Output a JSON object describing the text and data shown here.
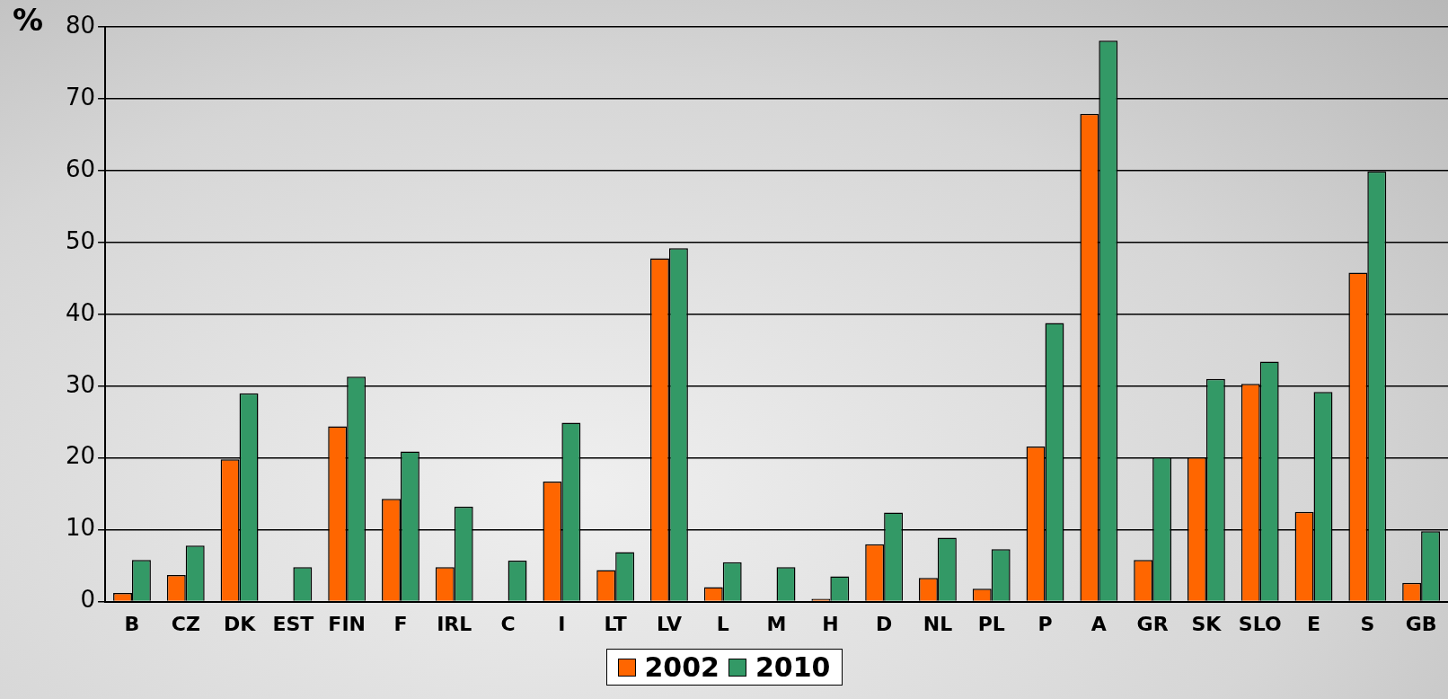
{
  "chart_data": {
    "type": "bar",
    "ylabel": "%",
    "categories": [
      "B",
      "CZ",
      "DK",
      "EST",
      "FIN",
      "F",
      "IRL",
      "C",
      "I",
      "LT",
      "LV",
      "L",
      "M",
      "H",
      "D",
      "NL",
      "PL",
      "P",
      "A",
      "GR",
      "SK",
      "SLO",
      "E",
      "S",
      "GB"
    ],
    "series": [
      {
        "name": "2002",
        "color": "#ff6600",
        "values": [
          1.2,
          3.7,
          19.8,
          0,
          24.4,
          14.3,
          4.8,
          0,
          16.7,
          4.4,
          47.8,
          2.0,
          0,
          0.4,
          8.0,
          3.3,
          1.8,
          21.6,
          67.9,
          5.8,
          20.1,
          30.3,
          12.5,
          45.8,
          2.6
        ]
      },
      {
        "name": "2010",
        "color": "#339966",
        "values": [
          5.8,
          7.8,
          29,
          4.8,
          31.3,
          20.9,
          13.2,
          5.7,
          24.9,
          6.9,
          49.2,
          5.5,
          4.8,
          3.5,
          12.4,
          8.9,
          7.3,
          38.8,
          78.1,
          20.1,
          31,
          33.4,
          29.2,
          59.9,
          9.8
        ]
      }
    ],
    "ylim": [
      0,
      80
    ],
    "yticks": [
      0,
      10,
      20,
      30,
      40,
      50,
      60,
      70,
      80
    ],
    "grid": "y",
    "legend": "bottom"
  }
}
